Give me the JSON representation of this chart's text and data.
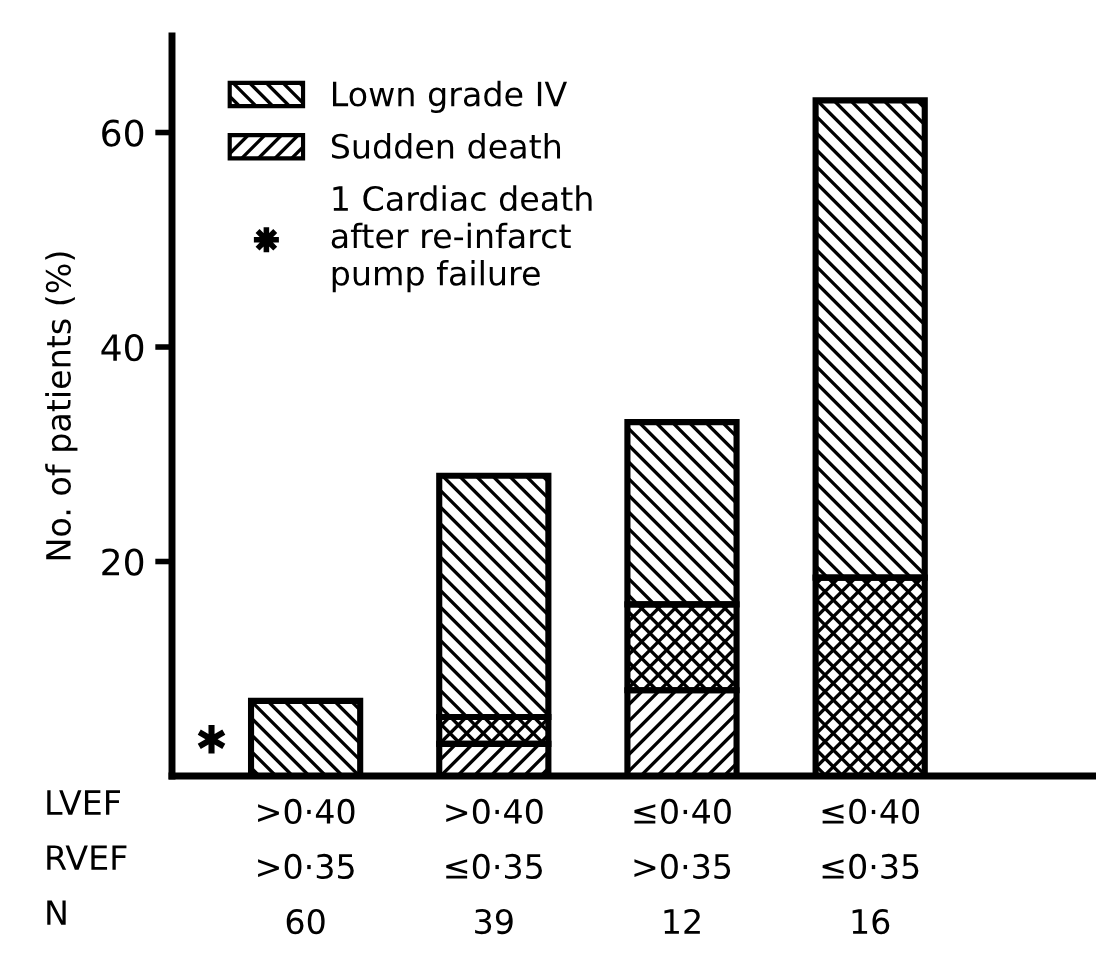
{
  "chart_data": {
    "type": "bar",
    "ylabel": "No. of patients (%)",
    "categories": [
      ">0·40\n>0·35\n60",
      ">0·40\n≤0·35\n39",
      "≤0·40\n>0·35\n12",
      "≤0·40\n≤0·35\n16"
    ],
    "stacked": true,
    "series": [
      {
        "name": "Sudden death",
        "color": "#000000",
        "values": [
          null,
          3,
          8,
          null
        ]
      },
      {
        "color": "#000000",
        "values": [
          null,
          2.5,
          8,
          18.5
        ]
      },
      {
        "name": "Lown grade IV",
        "color": "#000000",
        "values": [
          7,
          22.5,
          17,
          44.5
        ]
      }
    ],
    "ylim": [
      0,
      69
    ],
    "yticks": [
      20,
      40,
      60
    ],
    "grid": false,
    "legend": "top left",
    "annotations": [
      "✱",
      "1 Cardiac death\nafter re-infarct\npump failure",
      "LVEF\nRVEF\nN"
    ]
  }
}
